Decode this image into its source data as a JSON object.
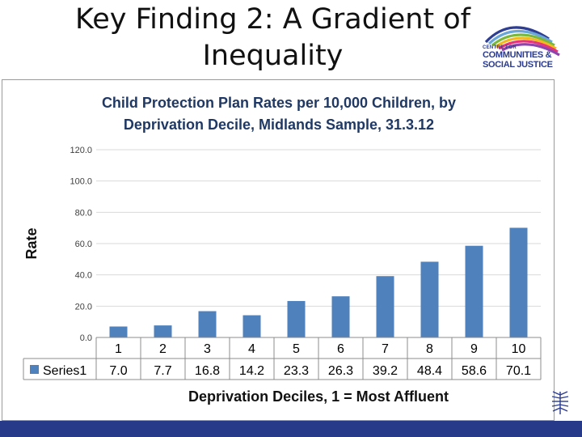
{
  "slide": {
    "title_line1": "Key Finding 2: A Gradient of",
    "title_line2": "Inequality"
  },
  "logo": {
    "small_text": "CENTRE FOR",
    "line1": "COMMUNITIES &",
    "line2": "SOCIAL JUSTICE"
  },
  "colors": {
    "bar": "#4f81bd",
    "bottom_bar": "#273a8a",
    "title_text": "#1f3864",
    "gridline": "#d9d9d9"
  },
  "chart_data": {
    "type": "bar",
    "title_line1": "Child Protection Plan Rates per 10,000 Children, by",
    "title_line2": "Deprivation Decile, Midlands Sample, 31.3.12",
    "xlabel": "Deprivation Deciles, 1 = Most Affluent",
    "ylabel": "Rate",
    "ylim": [
      0,
      120
    ],
    "yticks": [
      "0.0",
      "20.0",
      "40.0",
      "60.0",
      "80.0",
      "100.0",
      "120.0"
    ],
    "grid": true,
    "legend": "data-table",
    "categories": [
      "1",
      "2",
      "3",
      "4",
      "5",
      "6",
      "7",
      "8",
      "9",
      "10"
    ],
    "series": [
      {
        "name": "Series1",
        "values": [
          7.0,
          7.7,
          16.8,
          14.2,
          23.3,
          26.3,
          39.2,
          48.4,
          58.6,
          70.1
        ],
        "labels": [
          "7.0",
          "7.7",
          "16.8",
          "14.2",
          "23.3",
          "26.3",
          "39.2",
          "48.4",
          "58.6",
          "70.1"
        ]
      }
    ]
  }
}
